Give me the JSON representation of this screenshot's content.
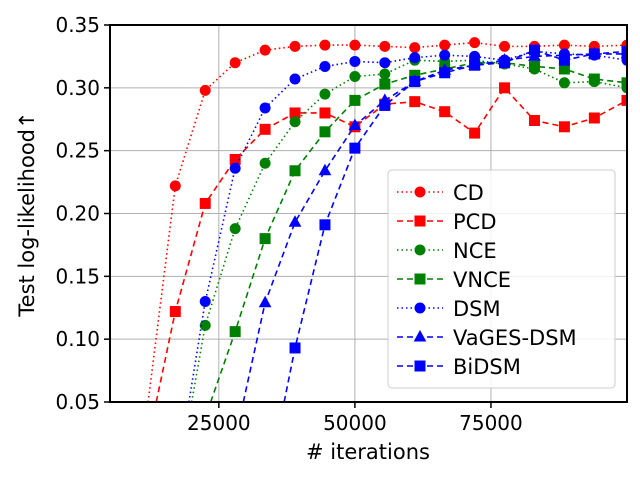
{
  "chart_data": {
    "type": "line",
    "title": "",
    "xlabel": "# iterations",
    "ylabel": "Test log-likelihood↑",
    "xlim": [
      5000,
      100000
    ],
    "ylim": [
      0.05,
      0.35
    ],
    "grid": true,
    "legend_position": "lower-right",
    "xticks": [
      25000,
      50000,
      75000
    ],
    "xtick_labels": [
      "25000",
      "50000",
      "75000"
    ],
    "yticks": [
      0.05,
      0.1,
      0.15,
      0.2,
      0.25,
      0.3,
      0.35
    ],
    "ytick_labels": [
      "0.05",
      "0.10",
      "0.15",
      "0.20",
      "0.25",
      "0.30",
      "0.35"
    ],
    "series": [
      {
        "name": "CD",
        "color": "#ff0000",
        "linestyle": "dotted",
        "marker": "circle",
        "x": [
          12000,
          17000,
          22500,
          28000,
          33500,
          39000,
          44500,
          50000,
          55500,
          61000,
          66500,
          72000,
          77500,
          83000,
          88500,
          94000,
          100000
        ],
        "y": [
          0.05,
          0.222,
          0.298,
          0.32,
          0.33,
          0.333,
          0.334,
          0.334,
          0.333,
          0.332,
          0.334,
          0.336,
          0.333,
          0.333,
          0.334,
          0.333,
          0.334
        ]
      },
      {
        "name": "PCD",
        "color": "#ff0000",
        "linestyle": "dashed",
        "marker": "square",
        "x": [
          13500,
          17000,
          22500,
          28000,
          33500,
          39000,
          44500,
          50000,
          55500,
          61000,
          66500,
          72000,
          77500,
          83000,
          88500,
          94000,
          100000
        ],
        "y": [
          0.05,
          0.122,
          0.208,
          0.243,
          0.267,
          0.28,
          0.28,
          0.269,
          0.287,
          0.289,
          0.281,
          0.264,
          0.3,
          0.274,
          0.269,
          0.276,
          0.29
        ]
      },
      {
        "name": "NCE",
        "color": "#008000",
        "linestyle": "dotted",
        "marker": "circle",
        "x": [
          20000,
          22500,
          28000,
          33500,
          39000,
          44500,
          50000,
          55500,
          61000,
          66500,
          72000,
          77500,
          83000,
          88500,
          94000,
          100000
        ],
        "y": [
          0.05,
          0.111,
          0.188,
          0.24,
          0.273,
          0.295,
          0.309,
          0.311,
          0.322,
          0.321,
          0.322,
          0.319,
          0.315,
          0.304,
          0.305,
          0.3
        ]
      },
      {
        "name": "VNCE",
        "color": "#008000",
        "linestyle": "dashed",
        "marker": "square",
        "x": [
          23500,
          28000,
          33500,
          39000,
          44500,
          50000,
          55500,
          61000,
          66500,
          72000,
          77500,
          83000,
          88500,
          94000,
          100000
        ],
        "y": [
          0.05,
          0.106,
          0.18,
          0.234,
          0.265,
          0.29,
          0.303,
          0.31,
          0.315,
          0.32,
          0.32,
          0.317,
          0.315,
          0.307,
          0.304
        ]
      },
      {
        "name": "DSM",
        "color": "#0000ff",
        "linestyle": "dotted",
        "marker": "circle",
        "x": [
          19500,
          22500,
          28000,
          33500,
          39000,
          44500,
          50000,
          55500,
          61000,
          66500,
          72000,
          77500,
          83000,
          88500,
          94000,
          100000
        ],
        "y": [
          0.05,
          0.13,
          0.236,
          0.284,
          0.307,
          0.317,
          0.321,
          0.32,
          0.324,
          0.326,
          0.325,
          0.322,
          0.329,
          0.327,
          0.326,
          0.322
        ]
      },
      {
        "name": "VaGES-DSM",
        "color": "#0000ff",
        "linestyle": "dashed",
        "marker": "triangle",
        "x": [
          29500,
          33500,
          39000,
          44500,
          50000,
          55500,
          61000,
          66500,
          72000,
          77500,
          83000,
          88500,
          94000,
          100000
        ],
        "y": [
          0.05,
          0.129,
          0.193,
          0.234,
          0.27,
          0.29,
          0.305,
          0.314,
          0.318,
          0.322,
          0.325,
          0.326,
          0.327,
          0.327
        ]
      },
      {
        "name": "BiDSM",
        "color": "#0000ff",
        "linestyle": "dashed",
        "marker": "square",
        "x": [
          37000,
          39000,
          44500,
          50000,
          55500,
          61000,
          66500,
          72000,
          77500,
          83000,
          88500,
          94000,
          100000
        ],
        "y": [
          0.05,
          0.093,
          0.191,
          0.252,
          0.286,
          0.305,
          0.312,
          0.318,
          0.32,
          0.33,
          0.322,
          0.327,
          0.329
        ]
      }
    ]
  }
}
